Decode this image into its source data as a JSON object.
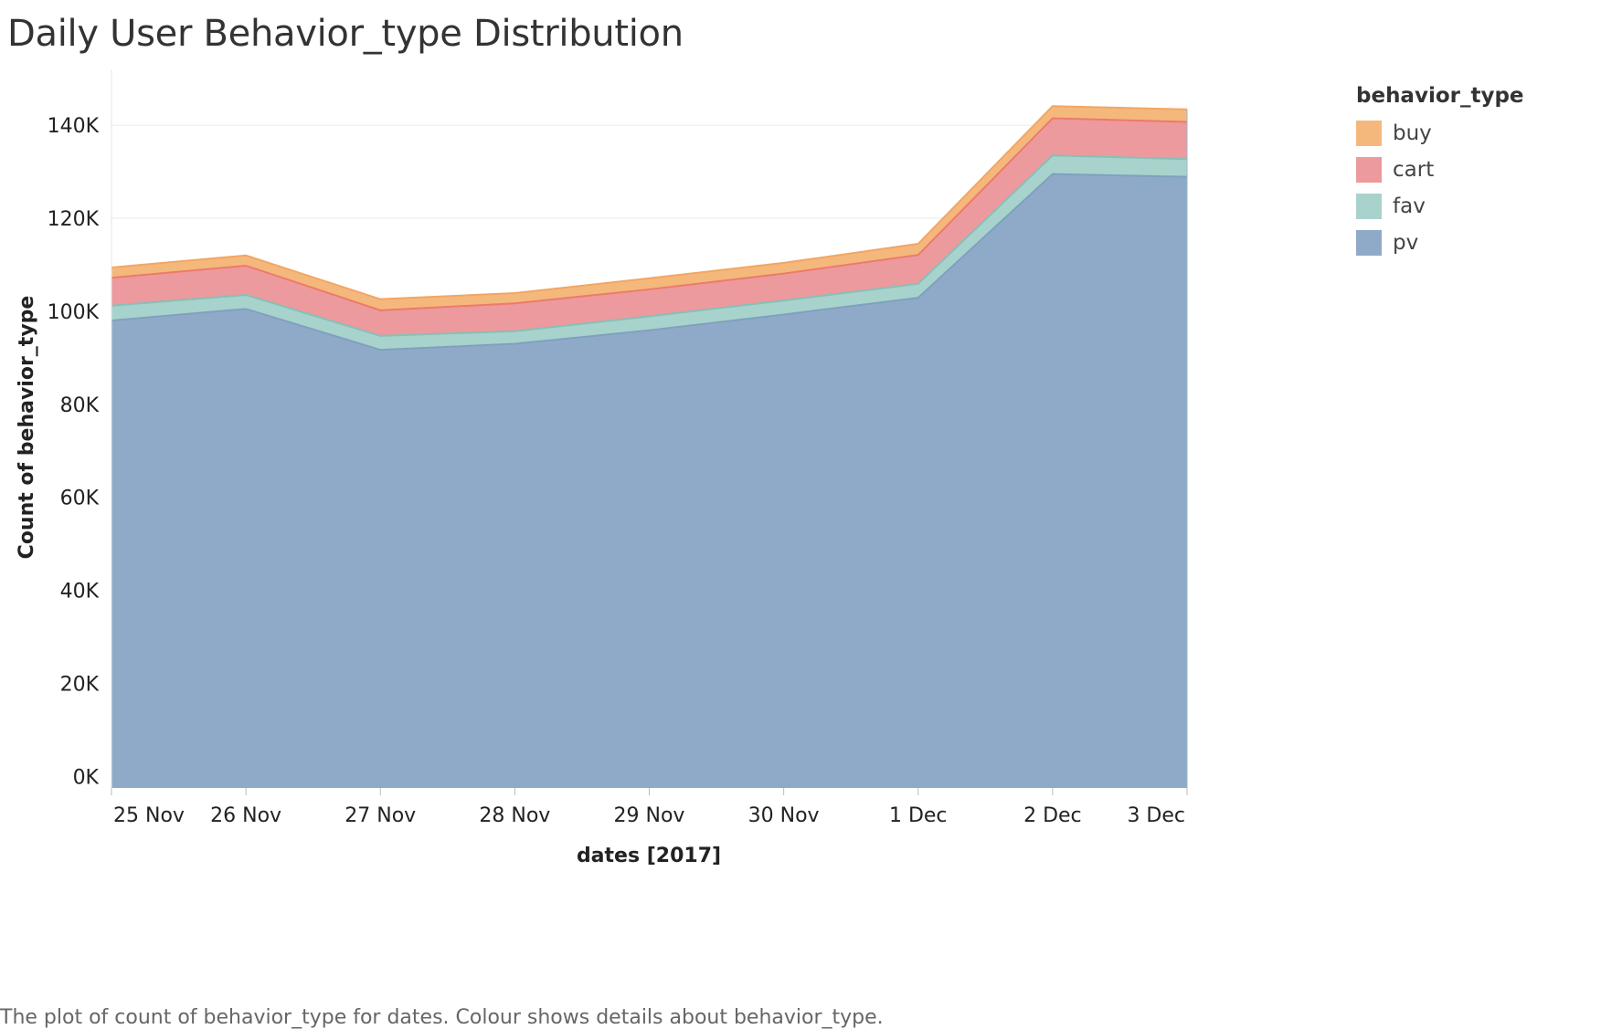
{
  "title": "Daily User Behavior_type Distribution",
  "caption": "The plot of count of behavior_type for dates.  Colour shows details about behavior_type.",
  "chart_data": {
    "type": "area",
    "stacked": true,
    "title": "Daily User Behavior_type Distribution",
    "xlabel": "dates [2017]",
    "ylabel": "Count of behavior_type",
    "categories": [
      "25 Nov",
      "26 Nov",
      "27 Nov",
      "28 Nov",
      "29 Nov",
      "30 Nov",
      "1 Dec",
      "2 Dec",
      "3 Dec"
    ],
    "y_ticks": [
      0,
      20000,
      40000,
      60000,
      80000,
      100000,
      120000,
      140000
    ],
    "y_tick_labels": [
      "0K",
      "20K",
      "40K",
      "60K",
      "80K",
      "100K",
      "120K",
      "140K"
    ],
    "ylim": [
      -2500,
      152000
    ],
    "grid": true,
    "legend_title": "behavior_type",
    "legend_position": "top-right",
    "legend_order": [
      "buy",
      "cart",
      "fav",
      "pv"
    ],
    "series": [
      {
        "name": "pv",
        "color": "#8faac8",
        "values": [
          98000,
          100500,
          91700,
          93000,
          95900,
          99300,
          102900,
          129500,
          128900
        ]
      },
      {
        "name": "fav",
        "color": "#a8d2cc",
        "values": [
          3200,
          3000,
          3000,
          2700,
          3000,
          3000,
          3000,
          4000,
          3800
        ]
      },
      {
        "name": "cart",
        "color": "#ec9a9d",
        "values": [
          6000,
          6300,
          5500,
          6000,
          5800,
          5800,
          6200,
          8000,
          8000
        ]
      },
      {
        "name": "buy",
        "color": "#f5b87c",
        "values": [
          2200,
          2200,
          2400,
          2200,
          2400,
          2300,
          2400,
          2600,
          2700
        ]
      }
    ],
    "line_colors": {
      "pv": "#7fa1bf",
      "fav": "#86c0b8",
      "cart": "#ec7b6a",
      "buy": "#f2a663"
    }
  }
}
